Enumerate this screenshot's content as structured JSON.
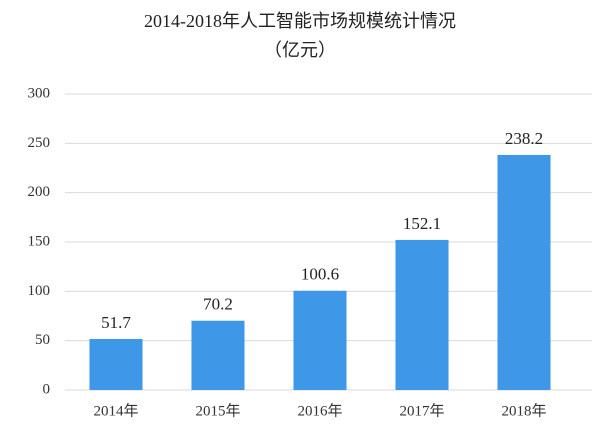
{
  "chart_data": {
    "type": "bar",
    "title": "2014-2018年人工智能市场规模统计情况",
    "subtitle": "（亿元）",
    "categories": [
      "2014年",
      "2015年",
      "2016年",
      "2017年",
      "2018年"
    ],
    "values": [
      51.7,
      70.2,
      100.6,
      152.1,
      238.2
    ],
    "color": "#3f97e8",
    "ylim": [
      0,
      300
    ],
    "yticks": [
      0,
      50,
      100,
      150,
      200,
      250,
      300
    ],
    "grid": true
  }
}
